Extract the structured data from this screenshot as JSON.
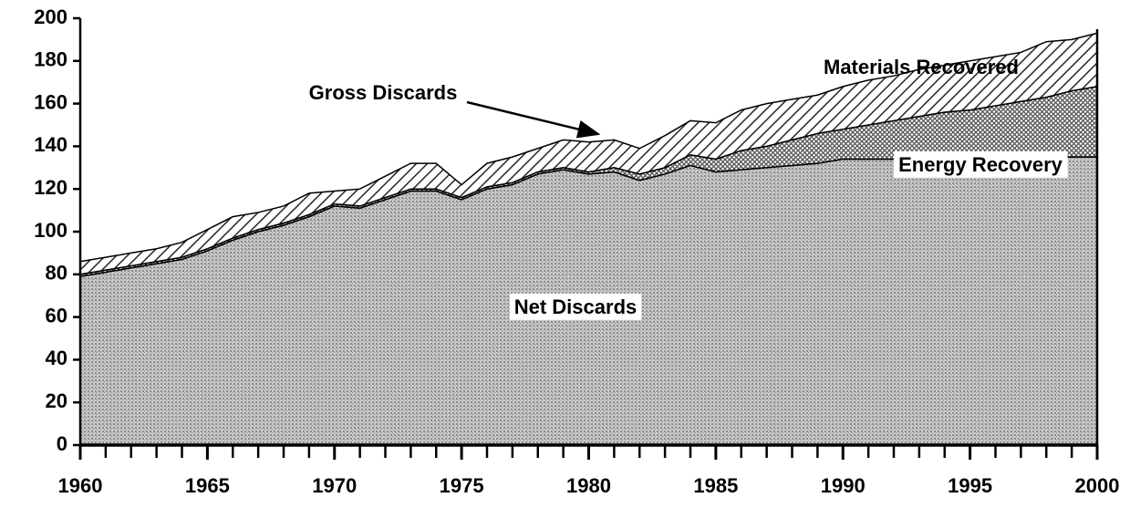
{
  "chart_data": {
    "type": "stacked_area",
    "x": [
      1960,
      1961,
      1962,
      1963,
      1964,
      1965,
      1966,
      1967,
      1968,
      1969,
      1970,
      1971,
      1972,
      1973,
      1974,
      1975,
      1976,
      1977,
      1978,
      1979,
      1980,
      1981,
      1982,
      1983,
      1984,
      1985,
      1986,
      1987,
      1988,
      1989,
      1990,
      1991,
      1992,
      1993,
      1994,
      1995,
      1996,
      1997,
      1998,
      1999,
      2000
    ],
    "series": [
      {
        "name": "Net Discards",
        "color": "#8c8c8c",
        "values": [
          79,
          81,
          83,
          85,
          87,
          91,
          96,
          100,
          103,
          107,
          112,
          111,
          115,
          119,
          119,
          115,
          120,
          122,
          127,
          129,
          127,
          128,
          124,
          127,
          131,
          128,
          129,
          130,
          131,
          132,
          134,
          134,
          134,
          134,
          135,
          135,
          135,
          135,
          135,
          135,
          135
        ]
      },
      {
        "name": "Energy Recovery",
        "color": "#555555",
        "values": [
          1,
          1,
          1,
          1,
          1,
          1,
          1,
          1,
          1,
          1,
          1,
          1,
          1,
          1,
          1,
          1,
          1,
          1,
          1,
          1,
          1,
          2,
          3,
          3,
          5,
          6,
          9,
          10,
          12,
          14,
          14,
          16,
          18,
          20,
          21,
          22,
          24,
          26,
          28,
          31,
          33
        ]
      },
      {
        "name": "Materials Recovered",
        "color": "#222222",
        "values": [
          6,
          6,
          6,
          6,
          7,
          9,
          10,
          8,
          8,
          10,
          6,
          8,
          10,
          12,
          12,
          6,
          11,
          12,
          11,
          13,
          14,
          13,
          12,
          15,
          16,
          17,
          19,
          20,
          19,
          18,
          20,
          21,
          21,
          22,
          22,
          23,
          23,
          23,
          26,
          24,
          25
        ]
      }
    ],
    "annotations": [
      "Gross Discards"
    ],
    "xlim": [
      1960,
      2000
    ],
    "xticks": [
      1960,
      1965,
      1970,
      1975,
      1980,
      1985,
      1990,
      1995,
      2000
    ],
    "ylim": [
      0,
      200
    ],
    "yticks": [
      0,
      20,
      40,
      60,
      80,
      100,
      120,
      140,
      160,
      180,
      200
    ]
  }
}
